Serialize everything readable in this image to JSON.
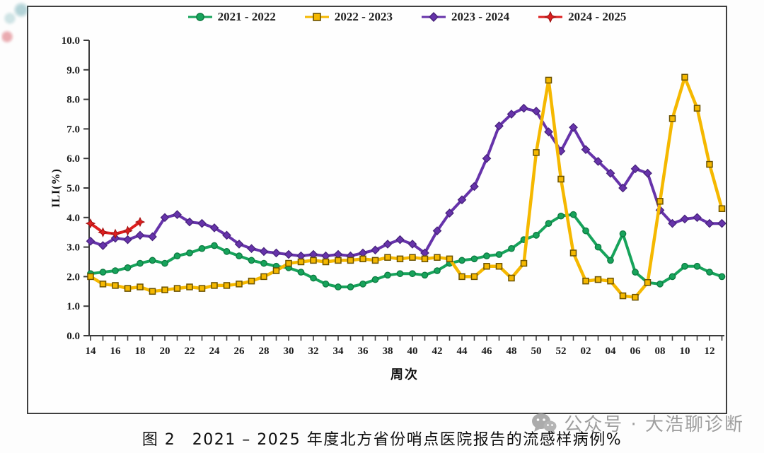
{
  "figure": {
    "caption": "图 2　2021 – 2025 年度北方省份哨点医院报告的流感样病例%",
    "watermark": "公众号 · 大浩聊诊断"
  },
  "chart_data": {
    "type": "line",
    "title": "",
    "xlabel": "周次",
    "ylabel": "ILI(%)",
    "ylim": [
      0.0,
      10.0
    ],
    "grid": false,
    "legend_position": "top-center",
    "x_tick_label_every": 2,
    "y_ticks": [
      "0.0",
      "1.0",
      "2.0",
      "3.0",
      "4.0",
      "5.0",
      "6.0",
      "7.0",
      "8.0",
      "9.0",
      "10.0"
    ],
    "categories": [
      "14",
      "15",
      "16",
      "17",
      "18",
      "19",
      "20",
      "21",
      "22",
      "23",
      "24",
      "25",
      "26",
      "27",
      "28",
      "29",
      "30",
      "31",
      "32",
      "33",
      "34",
      "35",
      "36",
      "37",
      "38",
      "39",
      "40",
      "41",
      "42",
      "43",
      "44",
      "45",
      "46",
      "47",
      "48",
      "49",
      "50",
      "51",
      "52",
      "01",
      "02",
      "03",
      "04",
      "05",
      "06",
      "07",
      "08",
      "09",
      "10",
      "11",
      "12",
      "13"
    ],
    "axis_color": "#3a3a3a",
    "series": [
      {
        "name": "2021 - 2022",
        "marker": "circle",
        "color": "#17A35B",
        "edge": "#0C7A40",
        "values": [
          2.1,
          2.15,
          2.2,
          2.3,
          2.45,
          2.55,
          2.45,
          2.7,
          2.8,
          2.95,
          3.05,
          2.85,
          2.7,
          2.55,
          2.45,
          2.35,
          2.3,
          2.15,
          1.95,
          1.75,
          1.65,
          1.65,
          1.75,
          1.9,
          2.05,
          2.1,
          2.1,
          2.05,
          2.2,
          2.45,
          2.55,
          2.6,
          2.7,
          2.75,
          2.95,
          3.25,
          3.4,
          3.8,
          4.05,
          4.1,
          3.55,
          3.0,
          2.55,
          3.45,
          2.15,
          1.8,
          1.75,
          2.0,
          2.35,
          2.35,
          2.15,
          2.0
        ]
      },
      {
        "name": "2022 - 2023",
        "marker": "square",
        "color": "#F5B800",
        "edge": "#6B5200",
        "values": [
          2.0,
          1.75,
          1.7,
          1.6,
          1.65,
          1.5,
          1.55,
          1.6,
          1.65,
          1.6,
          1.7,
          1.7,
          1.75,
          1.85,
          2.0,
          2.2,
          2.45,
          2.5,
          2.55,
          2.5,
          2.55,
          2.55,
          2.6,
          2.55,
          2.65,
          2.6,
          2.65,
          2.6,
          2.65,
          2.6,
          2.0,
          2.0,
          2.35,
          2.35,
          1.95,
          2.45,
          6.2,
          8.65,
          5.3,
          2.8,
          1.85,
          1.9,
          1.85,
          1.35,
          1.3,
          1.8,
          4.55,
          7.35,
          8.75,
          7.7,
          5.8,
          4.3
        ]
      },
      {
        "name": "2023 - 2024",
        "marker": "diamond",
        "color": "#6633AA",
        "edge": "#46217A",
        "values": [
          3.2,
          3.05,
          3.3,
          3.25,
          3.4,
          3.35,
          4.0,
          4.1,
          3.85,
          3.8,
          3.65,
          3.4,
          3.1,
          2.95,
          2.85,
          2.8,
          2.75,
          2.7,
          2.75,
          2.7,
          2.75,
          2.7,
          2.8,
          2.9,
          3.1,
          3.25,
          3.1,
          2.8,
          3.55,
          4.15,
          4.6,
          5.05,
          6.0,
          7.1,
          7.5,
          7.7,
          7.6,
          6.9,
          6.25,
          7.05,
          6.3,
          5.9,
          5.5,
          5.0,
          5.65,
          5.5,
          4.25,
          3.8,
          3.95,
          4.0,
          3.8,
          3.8
        ]
      },
      {
        "name": "2024 - 2025",
        "marker": "star",
        "color": "#DD1F1F",
        "edge": "#9E0F0F",
        "values": [
          3.8,
          3.5,
          3.45,
          3.55,
          3.85
        ]
      }
    ]
  }
}
